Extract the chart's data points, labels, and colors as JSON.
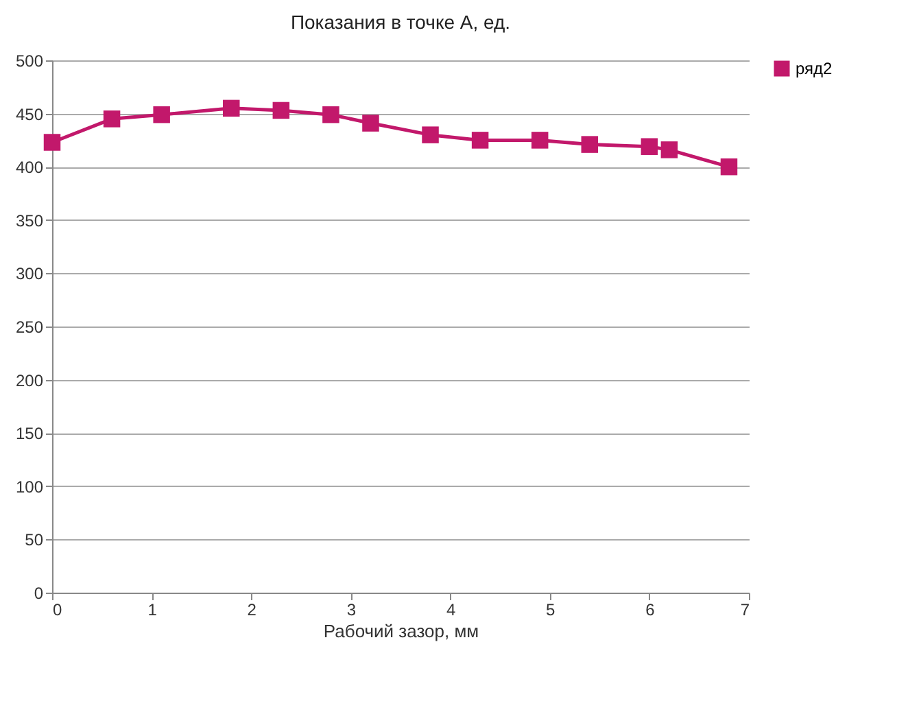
{
  "chart_data": {
    "type": "line",
    "title": "Показания в точке А, ед.",
    "xlabel": "Рабочий зазор, мм",
    "x": [
      0,
      0.6,
      1.1,
      1.8,
      2.3,
      2.8,
      3.2,
      3.8,
      4.3,
      4.9,
      5.4,
      6.0,
      6.2,
      6.8
    ],
    "series": [
      {
        "name": "ряд2",
        "color": "#c2186b",
        "values": [
          423,
          445,
          449,
          455,
          453,
          449,
          441,
          430,
          425,
          425,
          421,
          419,
          416,
          400
        ]
      }
    ],
    "xlim": [
      0,
      7
    ],
    "xticks": [
      0,
      1,
      2,
      3,
      4,
      5,
      6,
      7
    ],
    "ylim": [
      0,
      500
    ],
    "yticks": [
      0,
      50,
      100,
      150,
      200,
      250,
      300,
      350,
      400,
      450,
      500
    ],
    "grid": "y",
    "legend": "right",
    "marker": "square",
    "line_style": "solid"
  }
}
